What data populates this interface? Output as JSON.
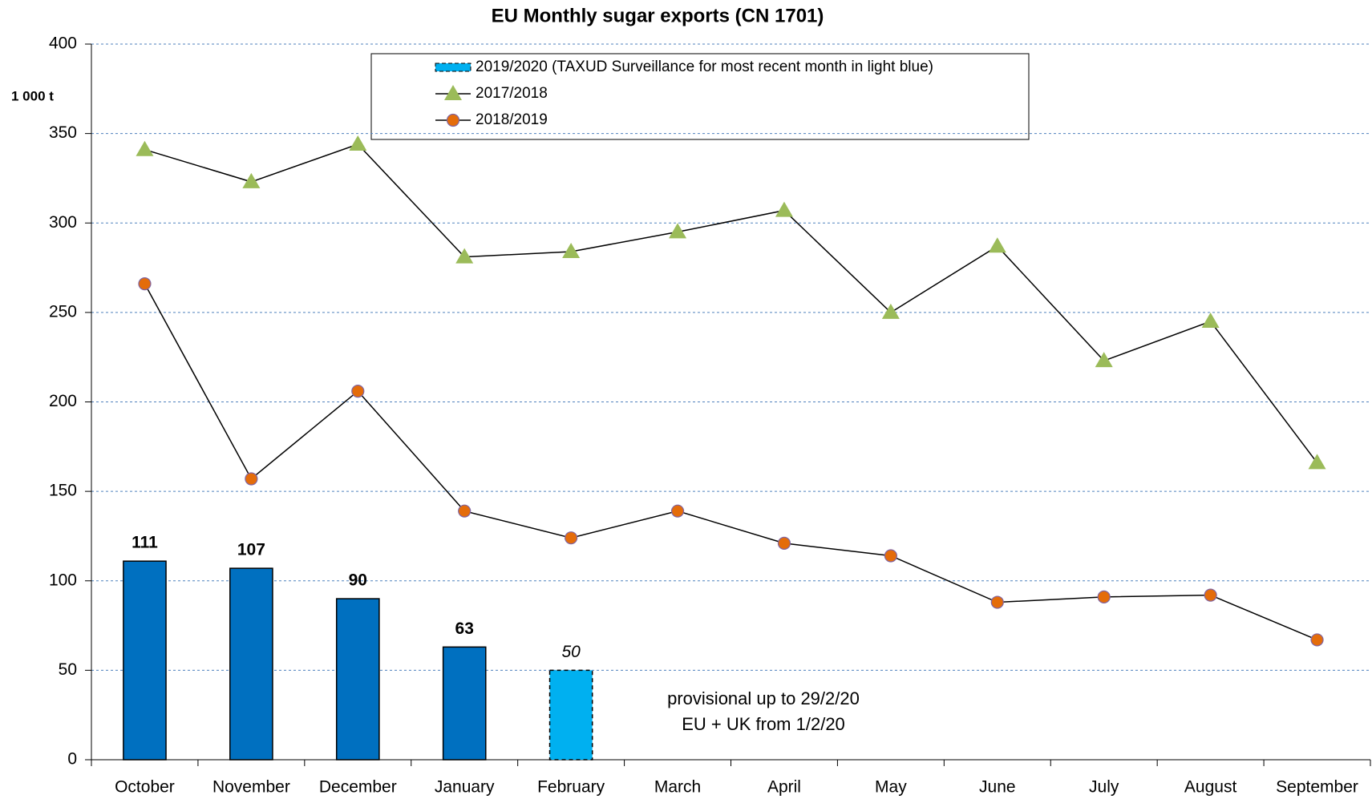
{
  "chart_data": {
    "type": "bar_line",
    "title": "EU Monthly sugar exports (CN 1701)",
    "y_label": "1 000 t",
    "categories": [
      "October",
      "November",
      "December",
      "January",
      "February",
      "March",
      "April",
      "May",
      "June",
      "July",
      "August",
      "September"
    ],
    "series": [
      {
        "name": "2019/2020 (TAXUD Surveillance for most recent month in light blue)",
        "kind": "bar",
        "color": "#0070c0",
        "colors": [
          "#0070c0",
          "#0070c0",
          "#0070c0",
          "#0070c0",
          "#00b0f0",
          null,
          null,
          null,
          null,
          null,
          null,
          null
        ],
        "values": [
          111,
          107,
          90,
          63,
          50,
          null,
          null,
          null,
          null,
          null,
          null,
          null
        ]
      },
      {
        "name": "2017/2018",
        "kind": "line",
        "marker": "triangle",
        "color": "#9bbb59",
        "values": [
          341,
          323,
          344,
          281,
          284,
          295,
          307,
          250,
          287,
          223,
          245,
          166
        ]
      },
      {
        "name": "2018/2019",
        "kind": "line",
        "marker": "circle",
        "color": "#e46c0a",
        "values": [
          266,
          157,
          206,
          139,
          124,
          139,
          121,
          114,
          88,
          91,
          92,
          67
        ]
      }
    ],
    "annotations": [
      "provisional up to 29/2/20",
      "EU + UK from 1/2/20"
    ],
    "ylim": [
      0,
      400
    ],
    "yticks": [
      0,
      50,
      100,
      150,
      200,
      250,
      300,
      350,
      400
    ],
    "grid": true
  }
}
